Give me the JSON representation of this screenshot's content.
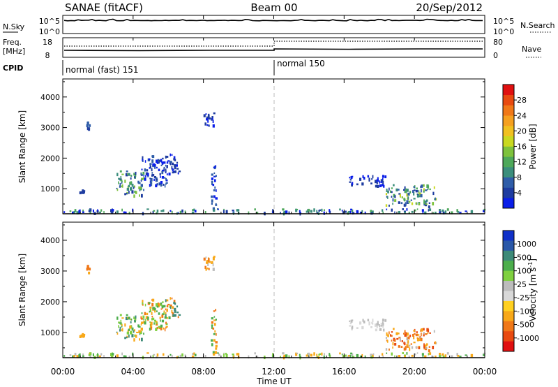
{
  "header": {
    "station": "SANAE (fitACF)",
    "beam": "Beam 00",
    "date": "20/Sep/2012"
  },
  "strips": {
    "nsky_label": "N.Sky",
    "nsky_ticks": [
      "10^5",
      "10^0"
    ],
    "nsearch_label": "N.Search",
    "nsearch_ticks": [
      "10^5",
      "10^0"
    ],
    "freq_label_1": "Freq.",
    "freq_label_2": "[MHz]",
    "freq_ticks": [
      "18",
      "8"
    ],
    "nave_label": "Nave",
    "nave_ticks": [
      "80",
      "0"
    ],
    "cpid_label": "CPID",
    "cpid_modes": [
      {
        "name": "normal (fast) 151",
        "start_hour": 0
      },
      {
        "name": "normal 150",
        "start_hour": 12
      }
    ]
  },
  "chart_data": [
    {
      "type": "heatmap",
      "name": "power",
      "ylabel": "Slant Range [km]",
      "yticks": [
        "1000",
        "2000",
        "3000",
        "4000"
      ],
      "ylim": [
        180,
        4590
      ],
      "xlim": [
        0,
        24
      ],
      "colorbar": {
        "label": "Power [dB]",
        "ticks": [
          "4",
          "8",
          "12",
          "16",
          "20",
          "24",
          "28"
        ],
        "colors": [
          "#0a1ee8",
          "#1e3ca0",
          "#2f5da8",
          "#3b8e7c",
          "#4ea85a",
          "#7ec23c",
          "#c9d820",
          "#f0c020",
          "#f5a020",
          "#f07818",
          "#e84a10",
          "#e01010"
        ]
      },
      "patches": [
        {
          "x0": 3.0,
          "x1": 4.6,
          "y0": 800,
          "y1": 1600,
          "c": [
            1,
            2,
            3,
            4,
            5
          ]
        },
        {
          "x0": 4.4,
          "x1": 6.2,
          "y0": 1100,
          "y1": 2100,
          "c": [
            0,
            1,
            2
          ]
        },
        {
          "x0": 5.8,
          "x1": 6.6,
          "y0": 1500,
          "y1": 2200,
          "c": [
            0,
            1
          ]
        },
        {
          "x0": 0.9,
          "x1": 1.2,
          "y0": 900,
          "y1": 1000,
          "c": [
            1
          ]
        },
        {
          "x0": 1.3,
          "x1": 1.5,
          "y0": 2900,
          "y1": 3200,
          "c": [
            1,
            2
          ]
        },
        {
          "x0": 8.0,
          "x1": 8.8,
          "y0": 3000,
          "y1": 3500,
          "c": [
            0,
            1
          ]
        },
        {
          "x0": 8.4,
          "x1": 8.7,
          "y0": 300,
          "y1": 1900,
          "c": [
            0,
            2
          ]
        },
        {
          "x0": 16.2,
          "x1": 18.3,
          "y0": 1100,
          "y1": 1450,
          "c": [
            0,
            1
          ]
        },
        {
          "x0": 18.3,
          "x1": 21.2,
          "y0": 450,
          "y1": 1150,
          "c": [
            1,
            2,
            3,
            4,
            5,
            6
          ]
        },
        {
          "x0": 0.0,
          "x1": 24.0,
          "y0": 230,
          "y1": 360,
          "c": [
            0,
            1,
            3,
            4
          ]
        }
      ]
    },
    {
      "type": "heatmap",
      "name": "velocity",
      "ylabel": "Slant Range [km]",
      "yticks": [
        "1000",
        "2000",
        "3000",
        "4000"
      ],
      "ylim": [
        180,
        4590
      ],
      "xlim": [
        0,
        24
      ],
      "colorbar": {
        "label": "Velocity [m s^-1]",
        "ticks": [
          "1000",
          "500",
          "100",
          "25",
          "-25",
          "-100",
          "-500",
          "-1000"
        ],
        "colors": [
          "#1030c8",
          "#2a58a8",
          "#3d8a78",
          "#4cae4c",
          "#7fd040",
          "#bcbcbc",
          "#d8d8d8",
          "#ffd020",
          "#f8a818",
          "#f07818",
          "#e84a10",
          "#e01010"
        ]
      },
      "patches": [
        {
          "x0": 3.0,
          "x1": 4.6,
          "y0": 800,
          "y1": 1600,
          "c": [
            2,
            3,
            4,
            8
          ]
        },
        {
          "x0": 4.4,
          "x1": 6.2,
          "y0": 1100,
          "y1": 2100,
          "c": [
            3,
            4,
            8,
            9
          ]
        },
        {
          "x0": 5.8,
          "x1": 6.6,
          "y0": 1500,
          "y1": 2200,
          "c": [
            9,
            8,
            2
          ]
        },
        {
          "x0": 0.9,
          "x1": 1.2,
          "y0": 900,
          "y1": 1000,
          "c": [
            8
          ]
        },
        {
          "x0": 1.3,
          "x1": 1.5,
          "y0": 2900,
          "y1": 3200,
          "c": [
            8,
            9
          ]
        },
        {
          "x0": 8.0,
          "x1": 8.8,
          "y0": 3000,
          "y1": 3500,
          "c": [
            5,
            8,
            9
          ]
        },
        {
          "x0": 8.4,
          "x1": 8.7,
          "y0": 300,
          "y1": 1900,
          "c": [
            9,
            8,
            3
          ]
        },
        {
          "x0": 16.2,
          "x1": 18.3,
          "y0": 1100,
          "y1": 1450,
          "c": [
            5,
            6
          ]
        },
        {
          "x0": 18.3,
          "x1": 21.2,
          "y0": 450,
          "y1": 1150,
          "c": [
            9,
            8,
            10,
            5
          ]
        },
        {
          "x0": 0.0,
          "x1": 24.0,
          "y0": 230,
          "y1": 360,
          "c": [
            3,
            4,
            8,
            5
          ]
        }
      ]
    }
  ],
  "xaxis": {
    "ticks": [
      "00:00",
      "04:00",
      "08:00",
      "12:00",
      "16:00",
      "20:00",
      "00:00"
    ],
    "label": "Time UT"
  }
}
